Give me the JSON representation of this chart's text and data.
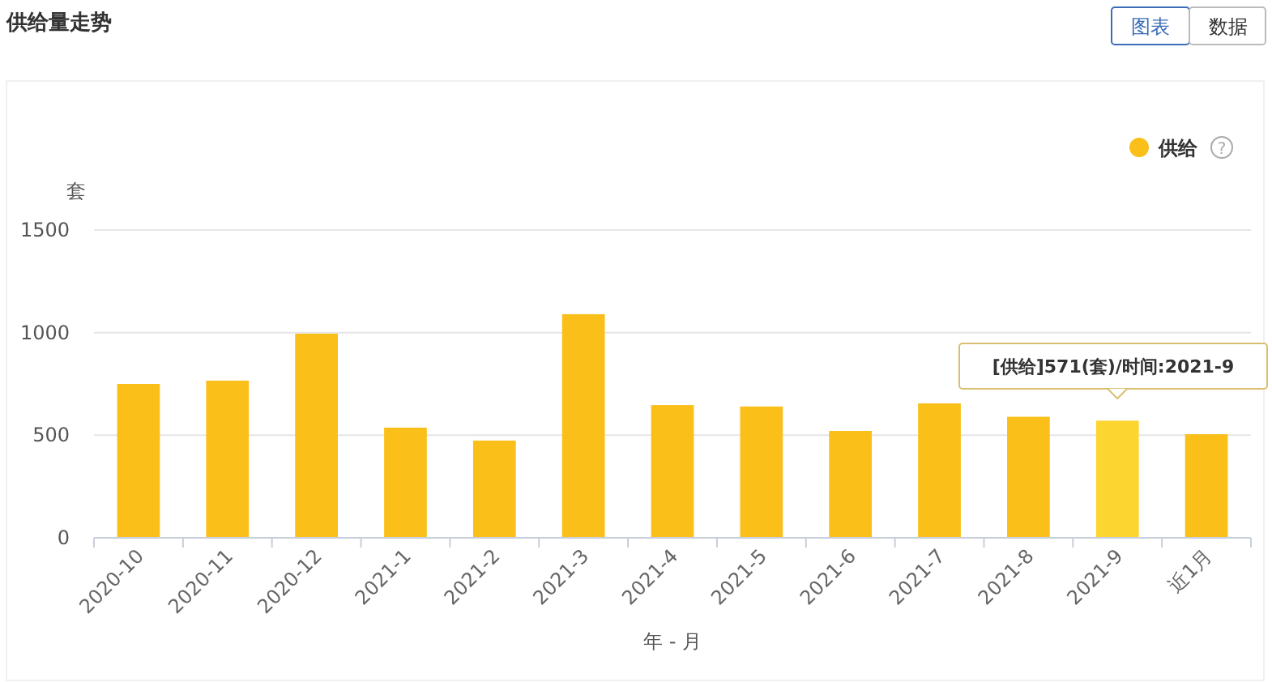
{
  "chart_data": {
    "type": "bar",
    "title": "供给量走势",
    "ylabel": "套",
    "xlabel": "年 - 月",
    "categories": [
      "2020-10",
      "2020-11",
      "2020-12",
      "2021-1",
      "2021-2",
      "2021-3",
      "2021-4",
      "2021-5",
      "2021-6",
      "2021-7",
      "2021-8",
      "2021-9",
      "近1月"
    ],
    "series": [
      {
        "name": "供给",
        "color": "#fbbf1a",
        "colors": [
          "#fbbf1a",
          "#fbbf1a",
          "#fbbf1a",
          "#fbbf1a",
          "#fbbf1a",
          "#fbbf1a",
          "#fbbf1a",
          "#fbbf1a",
          "#fbbf1a",
          "#fbbf1a",
          "#fbbf1a",
          "#fdd531",
          "#fbbf1a"
        ],
        "values": [
          750,
          766,
          995,
          537,
          474,
          1090,
          647,
          640,
          521,
          655,
          590,
          571,
          505
        ]
      }
    ],
    "ylim": [
      0,
      1500
    ],
    "yticks": [
      0,
      500,
      1000,
      1500
    ],
    "grid": "y",
    "legend": "top right",
    "annotations": [
      "[供给]571(套)/时间:2021-9",
      "图表",
      "数据",
      "?"
    ]
  }
}
